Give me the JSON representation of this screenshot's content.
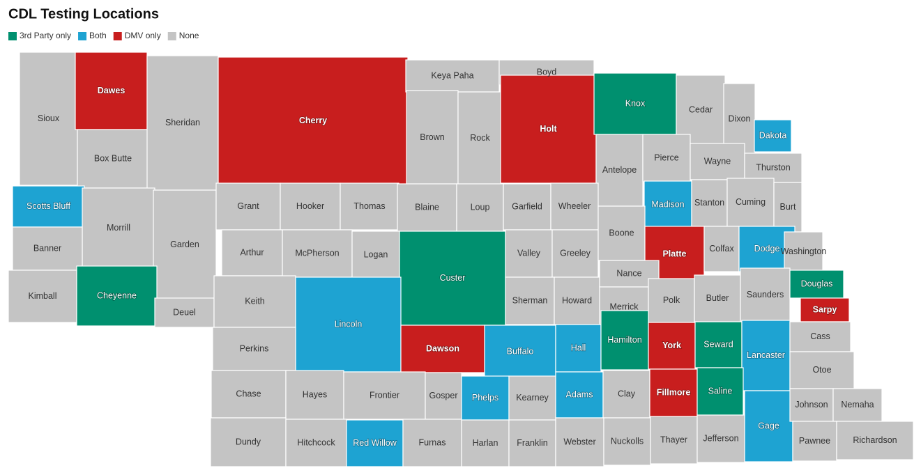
{
  "title": "CDL Testing Locations",
  "legend": [
    {
      "label": "3rd Party only",
      "color": "#00906f"
    },
    {
      "label": "Both",
      "color": "#1ea3d2"
    },
    {
      "label": "DMV only",
      "color": "#c81e1e"
    },
    {
      "label": "None",
      "color": "#c4c4c4"
    }
  ],
  "counties": [
    {
      "name": "Sioux",
      "status": "None"
    },
    {
      "name": "Dawes",
      "status": "DMV only"
    },
    {
      "name": "Box Butte",
      "status": "None"
    },
    {
      "name": "Sheridan",
      "status": "None"
    },
    {
      "name": "Cherry",
      "status": "DMV only"
    },
    {
      "name": "Keya Paha",
      "status": "None"
    },
    {
      "name": "Boyd",
      "status": "None"
    },
    {
      "name": "Brown",
      "status": "None"
    },
    {
      "name": "Rock",
      "status": "None"
    },
    {
      "name": "Holt",
      "status": "DMV only"
    },
    {
      "name": "Knox",
      "status": "3rd Party only"
    },
    {
      "name": "Cedar",
      "status": "None"
    },
    {
      "name": "Dixon",
      "status": "None"
    },
    {
      "name": "Dakota",
      "status": "Both"
    },
    {
      "name": "Antelope",
      "status": "None"
    },
    {
      "name": "Pierce",
      "status": "None"
    },
    {
      "name": "Wayne",
      "status": "None"
    },
    {
      "name": "Thurston",
      "status": "None"
    },
    {
      "name": "Scotts Bluff",
      "status": "Both"
    },
    {
      "name": "Morrill",
      "status": "None"
    },
    {
      "name": "Garden",
      "status": "None"
    },
    {
      "name": "Grant",
      "status": "None"
    },
    {
      "name": "Hooker",
      "status": "None"
    },
    {
      "name": "Thomas",
      "status": "None"
    },
    {
      "name": "Blaine",
      "status": "None"
    },
    {
      "name": "Loup",
      "status": "None"
    },
    {
      "name": "Garfield",
      "status": "None"
    },
    {
      "name": "Wheeler",
      "status": "None"
    },
    {
      "name": "Madison",
      "status": "Both"
    },
    {
      "name": "Stanton",
      "status": "None"
    },
    {
      "name": "Cuming",
      "status": "None"
    },
    {
      "name": "Burt",
      "status": "None"
    },
    {
      "name": "Banner",
      "status": "None"
    },
    {
      "name": "Arthur",
      "status": "None"
    },
    {
      "name": "McPherson",
      "status": "None"
    },
    {
      "name": "Logan",
      "status": "None"
    },
    {
      "name": "Custer",
      "status": "3rd Party only"
    },
    {
      "name": "Valley",
      "status": "None"
    },
    {
      "name": "Greeley",
      "status": "None"
    },
    {
      "name": "Boone",
      "status": "None"
    },
    {
      "name": "Platte",
      "status": "DMV only"
    },
    {
      "name": "Colfax",
      "status": "None"
    },
    {
      "name": "Dodge",
      "status": "Both"
    },
    {
      "name": "Washington",
      "status": "None"
    },
    {
      "name": "Kimball",
      "status": "None"
    },
    {
      "name": "Cheyenne",
      "status": "3rd Party only"
    },
    {
      "name": "Deuel",
      "status": "None"
    },
    {
      "name": "Keith",
      "status": "None"
    },
    {
      "name": "Lincoln",
      "status": "Both"
    },
    {
      "name": "Sherman",
      "status": "None"
    },
    {
      "name": "Howard",
      "status": "None"
    },
    {
      "name": "Nance",
      "status": "None"
    },
    {
      "name": "Merrick",
      "status": "None"
    },
    {
      "name": "Polk",
      "status": "None"
    },
    {
      "name": "Butler",
      "status": "None"
    },
    {
      "name": "Saunders",
      "status": "None"
    },
    {
      "name": "Douglas",
      "status": "3rd Party only"
    },
    {
      "name": "Sarpy",
      "status": "DMV only"
    },
    {
      "name": "Perkins",
      "status": "None"
    },
    {
      "name": "Dawson",
      "status": "DMV only"
    },
    {
      "name": "Buffalo",
      "status": "Both"
    },
    {
      "name": "Hall",
      "status": "Both"
    },
    {
      "name": "Hamilton",
      "status": "3rd Party only"
    },
    {
      "name": "York",
      "status": "DMV only"
    },
    {
      "name": "Seward",
      "status": "3rd Party only"
    },
    {
      "name": "Lancaster",
      "status": "Both"
    },
    {
      "name": "Cass",
      "status": "None"
    },
    {
      "name": "Chase",
      "status": "None"
    },
    {
      "name": "Hayes",
      "status": "None"
    },
    {
      "name": "Frontier",
      "status": "None"
    },
    {
      "name": "Gosper",
      "status": "None"
    },
    {
      "name": "Phelps",
      "status": "Both"
    },
    {
      "name": "Kearney",
      "status": "None"
    },
    {
      "name": "Adams",
      "status": "Both"
    },
    {
      "name": "Clay",
      "status": "None"
    },
    {
      "name": "Fillmore",
      "status": "DMV only"
    },
    {
      "name": "Saline",
      "status": "3rd Party only"
    },
    {
      "name": "Otoe",
      "status": "None"
    },
    {
      "name": "Gage",
      "status": "Both"
    },
    {
      "name": "Johnson",
      "status": "None"
    },
    {
      "name": "Nemaha",
      "status": "None"
    },
    {
      "name": "Dundy",
      "status": "None"
    },
    {
      "name": "Hitchcock",
      "status": "None"
    },
    {
      "name": "Red Willow",
      "status": "Both"
    },
    {
      "name": "Furnas",
      "status": "None"
    },
    {
      "name": "Harlan",
      "status": "None"
    },
    {
      "name": "Franklin",
      "status": "None"
    },
    {
      "name": "Webster",
      "status": "None"
    },
    {
      "name": "Nuckolls",
      "status": "None"
    },
    {
      "name": "Thayer",
      "status": "None"
    },
    {
      "name": "Jefferson",
      "status": "None"
    },
    {
      "name": "Pawnee",
      "status": "None"
    },
    {
      "name": "Richardson",
      "status": "None"
    }
  ]
}
